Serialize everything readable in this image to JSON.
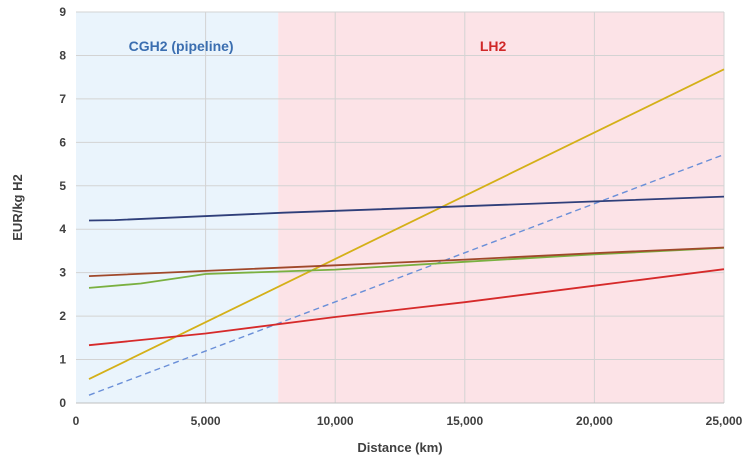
{
  "chart_data": {
    "type": "line",
    "title": "",
    "xlabel": "Distance (km)",
    "ylabel": "EUR/kg H2",
    "xlim": [
      0,
      25000
    ],
    "ylim": [
      0,
      9
    ],
    "xticks": [
      0,
      5000,
      10000,
      15000,
      20000,
      25000
    ],
    "xtick_labels": [
      "0",
      "5,000",
      "10,000",
      "15,000",
      "20,000",
      "25,000"
    ],
    "yticks": [
      0,
      1,
      2,
      3,
      4,
      5,
      6,
      7,
      8,
      9
    ],
    "ytick_labels": [
      "0",
      "1",
      "2",
      "3",
      "4",
      "5",
      "6",
      "7",
      "8",
      "9"
    ],
    "grid": true,
    "legend": "none",
    "regions": [
      {
        "label": "CGH2 (pipeline)",
        "x_start": 0,
        "x_end": 7800,
        "color": "#eaf4fc",
        "label_color": "#3b6eb0"
      },
      {
        "label": "LH2",
        "x_start": 7800,
        "x_end": 25000,
        "color": "#fce3e7",
        "label_color": "#d02828"
      }
    ],
    "series": [
      {
        "color": "#d4b018",
        "style": "solid",
        "points": [
          [
            500,
            0.55
          ],
          [
            25000,
            7.68
          ]
        ]
      },
      {
        "color": "#6a8fd8",
        "style": "dashed",
        "points": [
          [
            500,
            0.18
          ],
          [
            25000,
            5.72
          ]
        ]
      },
      {
        "color": "#2f3f7a",
        "style": "solid",
        "points": [
          [
            500,
            4.2
          ],
          [
            1500,
            4.21
          ],
          [
            8000,
            4.38
          ],
          [
            15000,
            4.53
          ],
          [
            25000,
            4.75
          ]
        ]
      },
      {
        "color": "#7ab040",
        "style": "solid",
        "points": [
          [
            500,
            2.65
          ],
          [
            2500,
            2.75
          ],
          [
            5000,
            2.97
          ],
          [
            10000,
            3.07
          ],
          [
            15000,
            3.25
          ],
          [
            20000,
            3.42
          ],
          [
            25000,
            3.57
          ]
        ]
      },
      {
        "color": "#a0482a",
        "style": "solid",
        "points": [
          [
            500,
            2.92
          ],
          [
            5000,
            3.04
          ],
          [
            10000,
            3.17
          ],
          [
            15000,
            3.3
          ],
          [
            20000,
            3.45
          ],
          [
            25000,
            3.58
          ]
        ]
      },
      {
        "color": "#d62a2a",
        "style": "solid",
        "points": [
          [
            500,
            1.33
          ],
          [
            5000,
            1.6
          ],
          [
            10000,
            1.98
          ],
          [
            15000,
            2.32
          ],
          [
            20000,
            2.7
          ],
          [
            25000,
            3.08
          ]
        ]
      }
    ]
  }
}
